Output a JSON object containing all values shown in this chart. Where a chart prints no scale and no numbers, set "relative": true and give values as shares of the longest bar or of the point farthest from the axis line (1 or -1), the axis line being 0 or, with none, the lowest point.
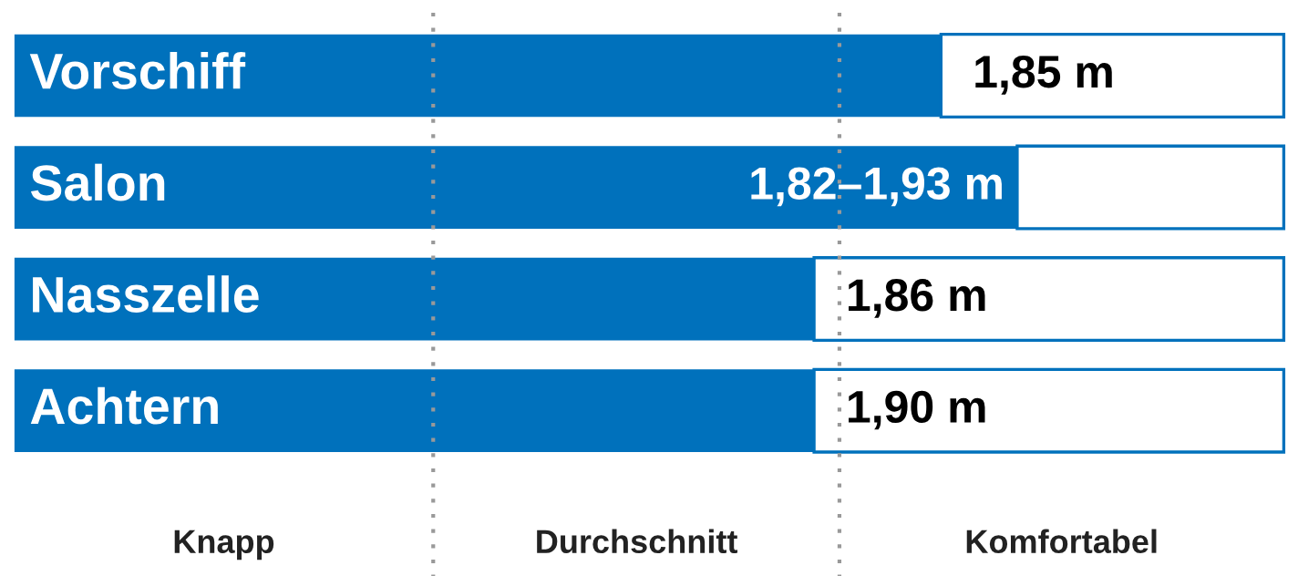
{
  "chart_data": {
    "type": "bar",
    "orientation": "horizontal",
    "relative": true,
    "stacked": true,
    "categories": [
      "Vorschiff",
      "Salon",
      "Nasszelle",
      "Achtern"
    ],
    "series": [
      {
        "color": "#0071bc",
        "values": [
          0.73,
          0.79,
          0.63,
          0.63
        ]
      },
      {
        "color": "#ffffff",
        "values": [
          0.27,
          0.21,
          0.37,
          0.37
        ]
      }
    ],
    "value_labels": [
      "1,85 m",
      "1,82–1,93 m",
      "1,86 m",
      "1,90 m"
    ],
    "ref_lines": [
      {
        "axis": "x",
        "value": 0.33,
        "color": "#999999",
        "line_style": "dotted"
      },
      {
        "axis": "x",
        "value": 0.65,
        "color": "#999999",
        "line_style": "dotted"
      }
    ],
    "annotations": [
      "Knapp",
      "Durchschnitt",
      "Komfortabel"
    ]
  }
}
